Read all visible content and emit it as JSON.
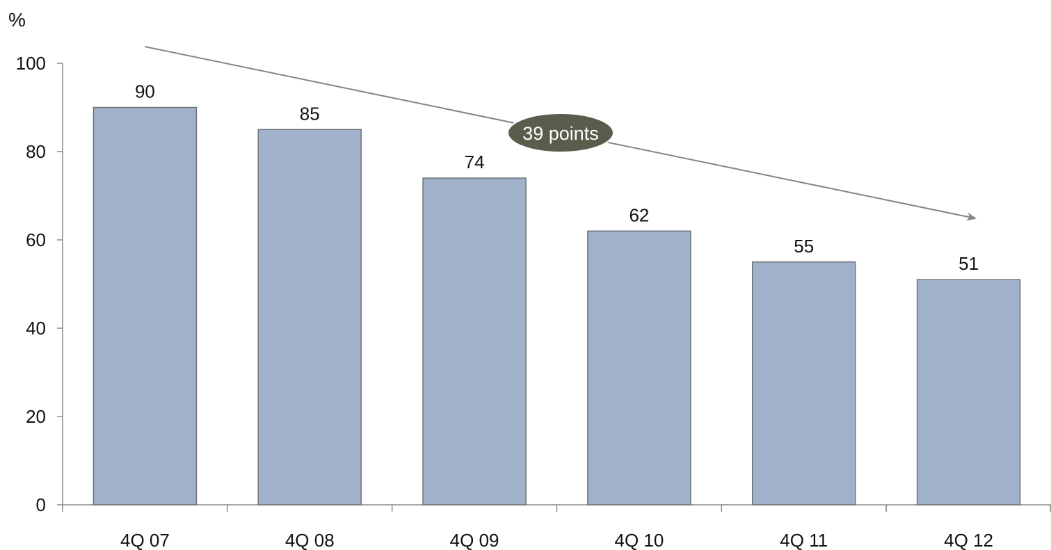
{
  "chart_data": {
    "type": "bar",
    "categories": [
      "4Q 07",
      "4Q 08",
      "4Q 09",
      "4Q 10",
      "4Q 11",
      "4Q 12"
    ],
    "values": [
      90,
      85,
      74,
      62,
      55,
      51
    ],
    "y_unit": "%",
    "ylim": [
      0,
      100
    ],
    "y_ticks": [
      0,
      20,
      40,
      60,
      80,
      100
    ],
    "grid": false,
    "data_labels": true,
    "annotation": {
      "text": "39 points",
      "arrow": "trend from 4Q 07 to 4Q 12"
    }
  },
  "colors": {
    "bar_fill": "#a0b1c9",
    "bar_stroke": "#6e7378",
    "axis": "#8a8a8a",
    "arrow": "#858585",
    "callout_fill": "#5a5c4c"
  }
}
